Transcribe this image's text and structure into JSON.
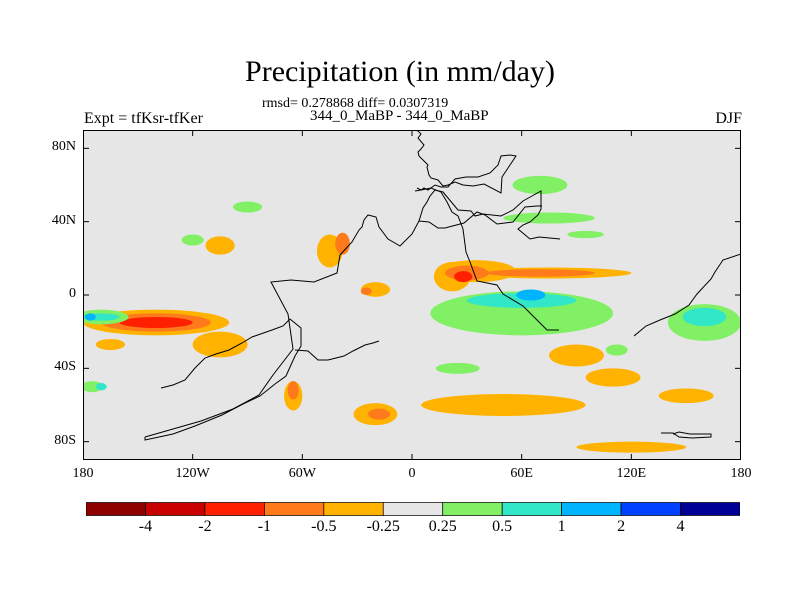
{
  "map": {
    "title": "Precipitation (in mm/day)",
    "stats": "rmsd= 0.278868 diff= 0.0307319",
    "subtitle": "344_0_MaBP - 344_0_MaBP",
    "left_label": "Expt = tfKsr-tfKer",
    "right_label": "DJF",
    "lon_range": [
      -180,
      180
    ],
    "lat_range": [
      -90,
      90
    ],
    "lat_ticks": [
      {
        "value": 80,
        "label": "80N"
      },
      {
        "value": 40,
        "label": "40N"
      },
      {
        "value": 0,
        "label": "0"
      },
      {
        "value": -40,
        "label": "40S"
      },
      {
        "value": -80,
        "label": "80S"
      }
    ],
    "lon_ticks": [
      {
        "value": -180,
        "label": "180"
      },
      {
        "value": -120,
        "label": "120W"
      },
      {
        "value": -60,
        "label": "60W"
      },
      {
        "value": 0,
        "label": "0"
      },
      {
        "value": 60,
        "label": "60E"
      },
      {
        "value": 120,
        "label": "120E"
      },
      {
        "value": 180,
        "label": "180"
      }
    ],
    "background_color": "#e6e6e6",
    "colorbar": {
      "colors": [
        "#8c0000",
        "#c80000",
        "#ff2000",
        "#ff7a1a",
        "#ffb200",
        "#e6e6e6",
        "#82f064",
        "#32e6c8",
        "#00b4ff",
        "#0040ff",
        "#000096"
      ],
      "labels": [
        "-4",
        "-2",
        "-1",
        "-0.5",
        "-0.25",
        "0.25",
        "0.5",
        "1",
        "2",
        "4"
      ]
    },
    "anomaly_fields": [
      {
        "lon": -45,
        "lat": 24,
        "rlon": 7,
        "rlat": 9,
        "level": "-0.25"
      },
      {
        "lon": -38,
        "lat": 28,
        "rlon": 4,
        "rlat": 6,
        "level": "-0.5"
      },
      {
        "lon": 22,
        "lat": 10,
        "rlon": 10,
        "rlat": 8,
        "level": "-0.25"
      },
      {
        "lon": 35,
        "lat": 13,
        "rlon": 22,
        "rlat": 6,
        "level": "-0.25"
      },
      {
        "lon": 75,
        "lat": 12,
        "rlon": 45,
        "rlat": 3,
        "level": "-0.25"
      },
      {
        "lon": 70,
        "lat": 12,
        "rlon": 30,
        "rlat": 2,
        "level": "-0.5"
      },
      {
        "lon": 30,
        "lat": 12,
        "rlon": 12,
        "rlat": 4,
        "level": "-0.5"
      },
      {
        "lon": 28,
        "lat": 10,
        "rlon": 5,
        "rlat": 3,
        "level": "-1"
      },
      {
        "lon": -20,
        "lat": 3,
        "rlon": 8,
        "rlat": 4,
        "level": "-0.25"
      },
      {
        "lon": -25,
        "lat": 2,
        "rlon": 3,
        "rlat": 2,
        "level": "-0.5"
      },
      {
        "lon": -140,
        "lat": -15,
        "rlon": 40,
        "rlat": 7,
        "level": "-0.25"
      },
      {
        "lon": -140,
        "lat": -15,
        "rlon": 30,
        "rlat": 5,
        "level": "-0.5"
      },
      {
        "lon": -140,
        "lat": -15,
        "rlon": 20,
        "rlat": 3,
        "level": "-1"
      },
      {
        "lon": -105,
        "lat": -27,
        "rlon": 15,
        "rlat": 7,
        "level": "-0.25"
      },
      {
        "lon": -165,
        "lat": -27,
        "rlon": 8,
        "rlat": 3,
        "level": "-0.25"
      },
      {
        "lon": -105,
        "lat": 27,
        "rlon": 8,
        "rlat": 5,
        "level": "-0.25"
      },
      {
        "lon": -65,
        "lat": -55,
        "rlon": 5,
        "rlat": 8,
        "level": "-0.25"
      },
      {
        "lon": -65,
        "lat": -52,
        "rlon": 3,
        "rlat": 5,
        "level": "-0.5"
      },
      {
        "lon": -20,
        "lat": -65,
        "rlon": 12,
        "rlat": 6,
        "level": "-0.25"
      },
      {
        "lon": -18,
        "lat": -65,
        "rlon": 6,
        "rlat": 3,
        "level": "-0.5"
      },
      {
        "lon": 50,
        "lat": -60,
        "rlon": 45,
        "rlat": 6,
        "level": "-0.25"
      },
      {
        "lon": 90,
        "lat": -33,
        "rlon": 15,
        "rlat": 6,
        "level": "-0.25"
      },
      {
        "lon": 110,
        "lat": -45,
        "rlon": 15,
        "rlat": 5,
        "level": "-0.25"
      },
      {
        "lon": 150,
        "lat": -55,
        "rlon": 15,
        "rlat": 4,
        "level": "-0.25"
      },
      {
        "lon": 120,
        "lat": -83,
        "rlon": 30,
        "rlat": 3,
        "level": "-0.25"
      },
      {
        "lon": 25,
        "lat": -15,
        "rlon": 5,
        "rlat": 3,
        "level": "-0.5"
      },
      {
        "lon": 70,
        "lat": 60,
        "rlon": 15,
        "rlat": 5,
        "level": "0.25"
      },
      {
        "lon": 75,
        "lat": 42,
        "rlon": 25,
        "rlat": 3,
        "level": "0.25"
      },
      {
        "lon": 95,
        "lat": 33,
        "rlon": 10,
        "rlat": 2,
        "level": "0.25"
      },
      {
        "lon": -90,
        "lat": 48,
        "rlon": 8,
        "rlat": 3,
        "level": "0.25"
      },
      {
        "lon": -120,
        "lat": 30,
        "rlon": 6,
        "rlat": 3,
        "level": "0.25"
      },
      {
        "lon": 60,
        "lat": -10,
        "rlon": 50,
        "rlat": 12,
        "level": "0.25"
      },
      {
        "lon": 60,
        "lat": -3,
        "rlon": 30,
        "rlat": 4,
        "level": "0.5"
      },
      {
        "lon": 65,
        "lat": 0,
        "rlon": 8,
        "rlat": 3,
        "level": "1"
      },
      {
        "lon": 160,
        "lat": -15,
        "rlon": 20,
        "rlat": 10,
        "level": "0.25"
      },
      {
        "lon": 160,
        "lat": -12,
        "rlon": 12,
        "rlat": 5,
        "level": "0.5"
      },
      {
        "lon": -170,
        "lat": -12,
        "rlon": 15,
        "rlat": 4,
        "level": "0.25"
      },
      {
        "lon": -170,
        "lat": -12,
        "rlon": 10,
        "rlat": 2,
        "level": "0.5"
      },
      {
        "lon": -176,
        "lat": -12,
        "rlon": 3,
        "rlat": 2,
        "level": "1"
      },
      {
        "lon": -175,
        "lat": -50,
        "rlon": 6,
        "rlat": 3,
        "level": "0.25"
      },
      {
        "lon": -170,
        "lat": -50,
        "rlon": 3,
        "rlat": 2,
        "level": "0.5"
      },
      {
        "lon": 25,
        "lat": -40,
        "rlon": 12,
        "rlat": 3,
        "level": "0.25"
      },
      {
        "lon": 112,
        "lat": -30,
        "rlon": 6,
        "rlat": 3,
        "level": "0.25"
      }
    ]
  }
}
